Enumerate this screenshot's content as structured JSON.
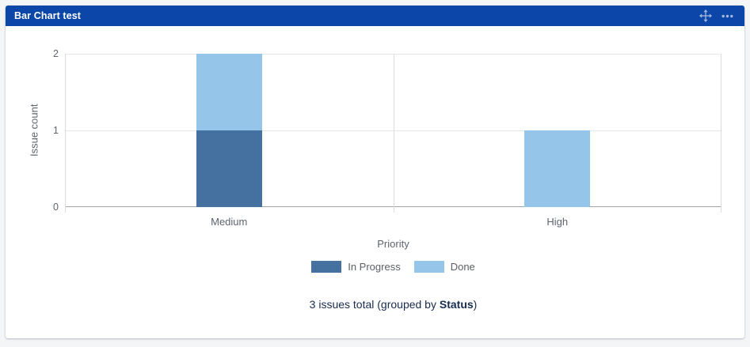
{
  "header": {
    "title": "Bar Chart test",
    "icons": {
      "move": "move-handle",
      "more": "more-options"
    }
  },
  "chart_data": {
    "type": "bar",
    "stacked": true,
    "title": "",
    "xlabel": "Priority",
    "ylabel": "Issue count",
    "categories": [
      "Medium",
      "High"
    ],
    "series": [
      {
        "name": "In Progress",
        "color": "#44719F",
        "values": [
          1,
          0
        ]
      },
      {
        "name": "Done",
        "color": "#95C5E8",
        "values": [
          1,
          1
        ]
      }
    ],
    "ylim": [
      0,
      2
    ],
    "yticks": [
      0,
      1,
      2
    ],
    "grid": true,
    "legend_position": "bottom",
    "colors": {
      "gridline": "#E5E5E5",
      "baseline": "#A3A3A3",
      "axis": "#DCDCDC"
    }
  },
  "summary": {
    "prefix": "3 issues total (grouped by ",
    "bold": "Status",
    "suffix": ")"
  }
}
